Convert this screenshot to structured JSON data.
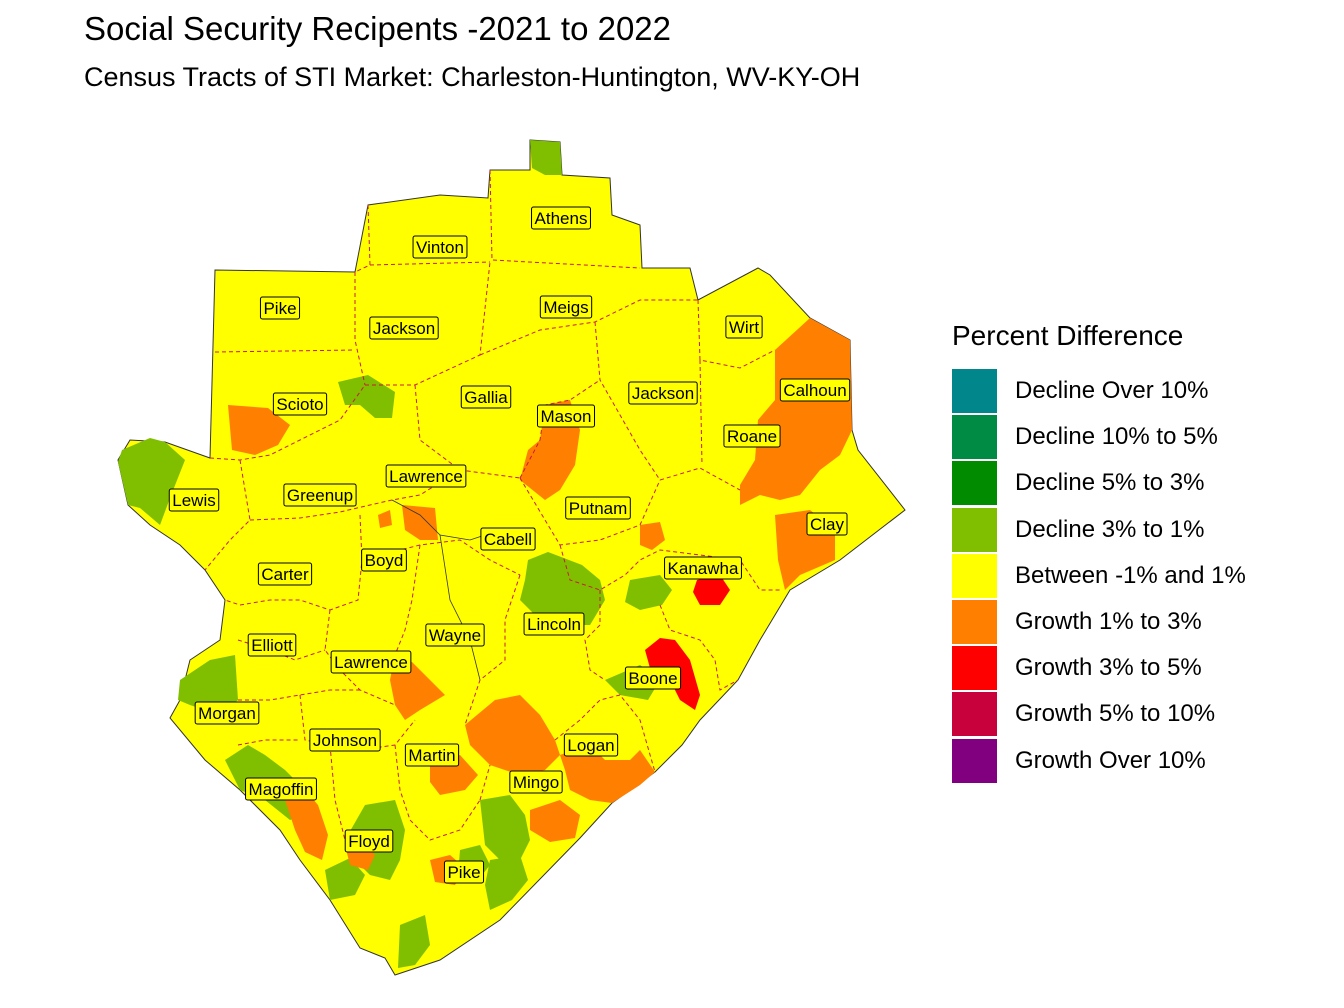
{
  "title": "Social Security Recipents -2021 to 2022",
  "subtitle": "Census Tracts of STI Market: Charleston-Huntington, WV-KY-OH",
  "legend": {
    "title": "Percent Difference",
    "items": [
      {
        "label": "Decline Over 10%",
        "color": "#00868b"
      },
      {
        "label": "Decline 10% to 5%",
        "color": "#008b45"
      },
      {
        "label": "Decline 5% to 3%",
        "color": "#008b00"
      },
      {
        "label": "Decline 3% to 1%",
        "color": "#7fbf00"
      },
      {
        "label": "Between -1% and 1%",
        "color": "#ffff00"
      },
      {
        "label": "Growth 1% to 3%",
        "color": "#ff7f00"
      },
      {
        "label": "Growth 3% to 5%",
        "color": "#ff0000"
      },
      {
        "label": "Growth 5% to 10%",
        "color": "#c8003c"
      },
      {
        "label": "Growth Over 10%",
        "color": "#800080"
      }
    ]
  },
  "counties": [
    "Athens",
    "Vinton",
    "Meigs",
    "Pike",
    "Jackson",
    "Wirt",
    "Calhoun",
    "Scioto",
    "Gallia",
    "Mason",
    "Jackson",
    "Roane",
    "Lawrence",
    "Lewis",
    "Greenup",
    "Putnam",
    "Clay",
    "Cabell",
    "Kanawha",
    "Boyd",
    "Carter",
    "Wayne",
    "Lincoln",
    "Elliott",
    "Lawrence",
    "Boone",
    "Morgan",
    "Johnson",
    "Logan",
    "Martin",
    "Magoffin",
    "Mingo",
    "Floyd",
    "Pike"
  ],
  "colors": {
    "base": "#ffff00",
    "decline_1_3": "#7fbf00",
    "growth_1_3": "#ff7f00",
    "growth_3_5": "#ff0000",
    "border": "#cc1a3c"
  }
}
